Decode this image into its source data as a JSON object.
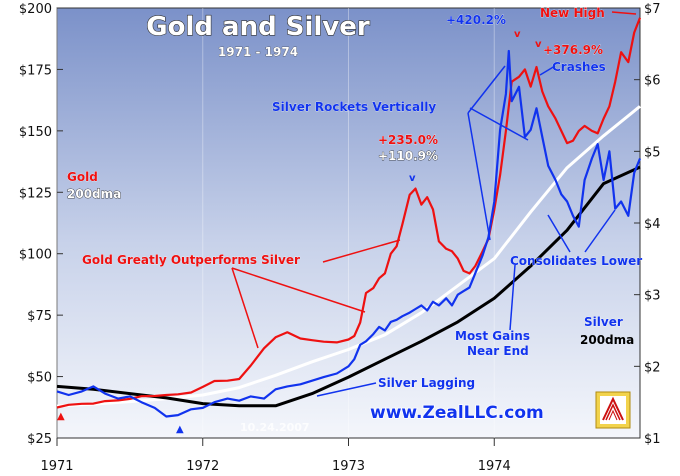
{
  "chart_data": {
    "type": "line",
    "title": "Gold and Silver",
    "subtitle": "1971 - 1974",
    "watermark_date": "10.24.2007",
    "website": "www.ZealLLC.com",
    "x_ticks": [
      "1971",
      "1972",
      "1973",
      "1974"
    ],
    "left_axis": {
      "ticks": [
        "$25",
        "$50",
        "$75",
        "$100",
        "$125",
        "$150",
        "$175",
        "$200"
      ],
      "ylim": [
        25,
        200
      ]
    },
    "right_axis": {
      "ticks": [
        "$1",
        "$2",
        "$3",
        "$4",
        "$5",
        "$6",
        "$7"
      ],
      "ylim": [
        1,
        7
      ]
    },
    "series": [
      {
        "name": "Gold",
        "axis": "left",
        "color": "#ee1111",
        "x": [
          1971.0,
          1971.08,
          1971.17,
          1971.25,
          1971.33,
          1971.42,
          1971.5,
          1971.58,
          1971.67,
          1971.75,
          1971.83,
          1971.92,
          1972.0,
          1972.08,
          1972.17,
          1972.25,
          1972.33,
          1972.42,
          1972.5,
          1972.58,
          1972.67,
          1972.75,
          1972.83,
          1972.92,
          1973.0,
          1973.04,
          1973.08,
          1973.12,
          1973.17,
          1973.21,
          1973.25,
          1973.29,
          1973.33,
          1973.37,
          1973.42,
          1973.46,
          1973.5,
          1973.54,
          1973.58,
          1973.62,
          1973.67,
          1973.71,
          1973.75,
          1973.79,
          1973.83,
          1973.87,
          1973.92,
          1973.96,
          1974.0,
          1974.04,
          1974.08,
          1974.12,
          1974.17,
          1974.21,
          1974.25,
          1974.29,
          1974.33,
          1974.37,
          1974.42,
          1974.46,
          1974.5,
          1974.54,
          1974.58,
          1974.62,
          1974.67,
          1974.71,
          1974.75,
          1974.79,
          1974.83,
          1974.87,
          1974.92,
          1974.96,
          1975.0
        ],
        "values": [
          37.4,
          38.5,
          38.9,
          39.0,
          40.0,
          40.3,
          40.9,
          42.0,
          42.1,
          42.5,
          42.8,
          43.5,
          45.8,
          48.2,
          48.3,
          49.0,
          54.5,
          61.5,
          66.0,
          68.0,
          65.5,
          64.8,
          64.2,
          63.9,
          65.1,
          66.5,
          72.0,
          84.0,
          86.0,
          90.0,
          92.0,
          100.0,
          103.0,
          112.0,
          124.0,
          126.5,
          120.0,
          123.0,
          118.0,
          105.0,
          102.0,
          101.0,
          98.0,
          93.0,
          92.0,
          95.0,
          101.0,
          106.0,
          118.0,
          132.0,
          150.0,
          170.0,
          172.0,
          175.0,
          168.0,
          176.0,
          166.0,
          160.0,
          155.0,
          150.0,
          145.0,
          146.0,
          150.0,
          152.0,
          150.0,
          149.0,
          155.0,
          160.0,
          170.0,
          182.0,
          178.0,
          190.0,
          196.0
        ]
      },
      {
        "name": "Silver",
        "axis": "right",
        "color": "#1133ee",
        "x": [
          1971.0,
          1971.08,
          1971.17,
          1971.25,
          1971.33,
          1971.42,
          1971.5,
          1971.58,
          1971.67,
          1971.75,
          1971.83,
          1971.92,
          1972.0,
          1972.08,
          1972.17,
          1972.25,
          1972.33,
          1972.42,
          1972.5,
          1972.58,
          1972.67,
          1972.75,
          1972.83,
          1972.92,
          1973.0,
          1973.04,
          1973.08,
          1973.12,
          1973.17,
          1973.21,
          1973.25,
          1973.29,
          1973.33,
          1973.37,
          1973.42,
          1973.46,
          1973.5,
          1973.54,
          1973.58,
          1973.62,
          1973.67,
          1973.71,
          1973.75,
          1973.79,
          1973.83,
          1973.87,
          1973.92,
          1973.96,
          1974.0,
          1974.04,
          1974.08,
          1974.1,
          1974.12,
          1974.17,
          1974.21,
          1974.25,
          1974.29,
          1974.33,
          1974.37,
          1974.42,
          1974.46,
          1974.5,
          1974.54,
          1974.58,
          1974.62,
          1974.67,
          1974.71,
          1974.75,
          1974.79,
          1974.83,
          1974.87,
          1974.92,
          1974.96,
          1975.0
        ],
        "values": [
          1.65,
          1.6,
          1.65,
          1.72,
          1.62,
          1.55,
          1.58,
          1.5,
          1.42,
          1.3,
          1.32,
          1.4,
          1.42,
          1.5,
          1.55,
          1.52,
          1.58,
          1.55,
          1.68,
          1.72,
          1.75,
          1.8,
          1.85,
          1.9,
          2.0,
          2.1,
          2.3,
          2.35,
          2.45,
          2.55,
          2.5,
          2.62,
          2.65,
          2.7,
          2.75,
          2.8,
          2.85,
          2.78,
          2.9,
          2.85,
          2.95,
          2.85,
          3.0,
          3.05,
          3.1,
          3.3,
          3.55,
          3.8,
          4.3,
          5.3,
          5.8,
          6.4,
          5.7,
          5.9,
          5.2,
          5.3,
          5.6,
          5.2,
          4.8,
          4.6,
          4.4,
          4.3,
          4.1,
          3.95,
          4.6,
          4.9,
          5.1,
          4.6,
          5.0,
          4.2,
          4.3,
          4.1,
          4.7,
          4.9
        ]
      },
      {
        "name": "Gold 200dma",
        "axis": "left",
        "color": "#ffffff",
        "x": [
          1971.0,
          1971.25,
          1971.5,
          1971.75,
          1972.0,
          1972.25,
          1972.5,
          1972.75,
          1973.0,
          1973.25,
          1973.5,
          1973.75,
          1974.0,
          1974.25,
          1974.5,
          1974.75,
          1975.0
        ],
        "values": [
          38.0,
          38.8,
          39.8,
          41.0,
          42.5,
          45.5,
          50.5,
          56.0,
          61.0,
          67.0,
          76.0,
          87.0,
          98.0,
          117.0,
          135.0,
          148.0,
          160.0
        ]
      },
      {
        "name": "Silver 200dma",
        "axis": "right",
        "color": "#000000",
        "x": [
          1971.0,
          1971.25,
          1971.5,
          1971.75,
          1972.0,
          1972.25,
          1972.5,
          1972.75,
          1973.0,
          1973.25,
          1973.5,
          1973.75,
          1974.0,
          1974.25,
          1974.5,
          1974.75,
          1975.0
        ],
        "values": [
          1.72,
          1.68,
          1.62,
          1.56,
          1.48,
          1.45,
          1.45,
          1.62,
          1.85,
          2.1,
          2.35,
          2.62,
          2.95,
          3.4,
          3.9,
          4.55,
          4.78
        ]
      }
    ],
    "annotations": {
      "gold_label": "Gold",
      "gold_dma_label": "200dma",
      "silver_label": "Silver",
      "silver_dma_label": "200dma",
      "gold_outperforms": "Gold Greatly Outperforms Silver",
      "silver_lagging": "Silver Lagging",
      "silver_rockets": "Silver Rockets Vertically",
      "most_gains": "Most Gains",
      "near_end": "Near End",
      "consolidates": "Consolidates Lower",
      "crashes": "Crashes",
      "new_high": "New High",
      "gold_peak_pct": "+235.0%",
      "silver_mid_pct": "+110.9%",
      "silver_peak_pct": "+420.2%",
      "gold_peak2_pct": "+376.9%"
    },
    "colors": {
      "gold": "#ee1111",
      "silver": "#1133ee",
      "background_top": "#7b91c9",
      "background_bottom": "#f4f6fb"
    }
  }
}
